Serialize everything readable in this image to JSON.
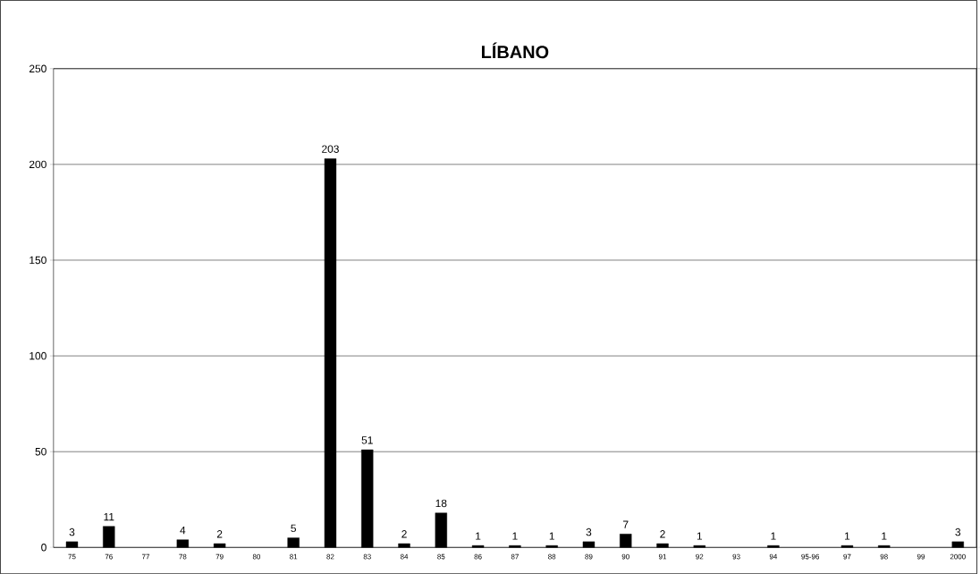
{
  "chart_data": {
    "type": "bar",
    "title": "LÍBANO",
    "categories": [
      "75",
      "76",
      "77",
      "78",
      "79",
      "80",
      "81",
      "82",
      "83",
      "84",
      "85",
      "86",
      "87",
      "88",
      "89",
      "90",
      "91",
      "92",
      "93",
      "94",
      "95-96",
      "97",
      "98",
      "99",
      "2000"
    ],
    "values": [
      3,
      11,
      null,
      4,
      2,
      null,
      5,
      203,
      51,
      2,
      18,
      1,
      1,
      1,
      3,
      7,
      2,
      1,
      null,
      1,
      null,
      1,
      1,
      null,
      3
    ],
    "color": "#000000",
    "ylim": [
      0,
      250
    ],
    "yticks": [
      0,
      50,
      100,
      150,
      200,
      250
    ],
    "grid": "y",
    "data_labels": true
  }
}
